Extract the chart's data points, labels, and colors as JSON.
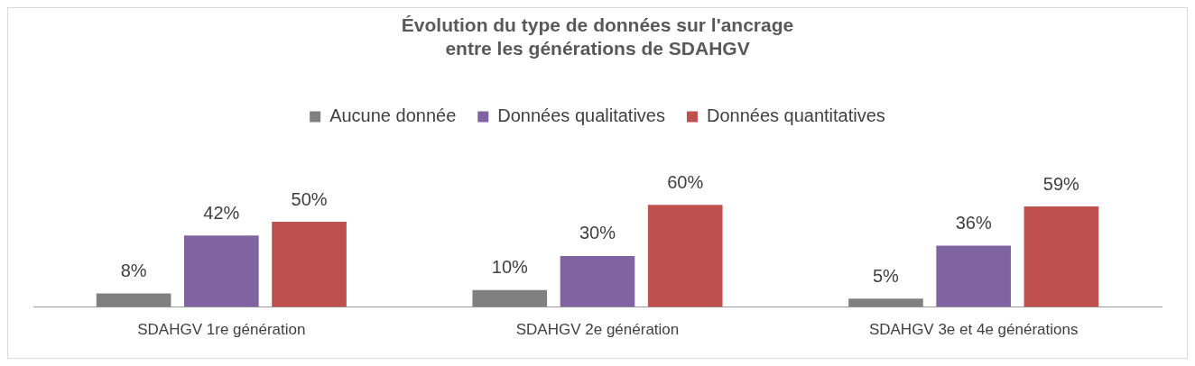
{
  "chart_data": {
    "type": "bar",
    "title": "Évolution du type de données sur l'ancrage\nentre les générations de SDAHGV",
    "categories": [
      "SDAHGV 1re génération",
      "SDAHGV 2e génération",
      "SDAHGV 3e et 4e générations"
    ],
    "series": [
      {
        "name": "Aucune donnée",
        "color": "#808080",
        "values": [
          8,
          10,
          5
        ],
        "value_labels": [
          "8%",
          "10%",
          "5%"
        ]
      },
      {
        "name": "Données qualitatives",
        "color": "#8064a2",
        "values": [
          42,
          30,
          36
        ],
        "value_labels": [
          "42%",
          "30%",
          "36%"
        ]
      },
      {
        "name": "Données quantitatives",
        "color": "#c0504d",
        "values": [
          50,
          60,
          59
        ],
        "value_labels": [
          "50%",
          "60%",
          "59%"
        ]
      }
    ],
    "legend": "top",
    "grid": false
  }
}
